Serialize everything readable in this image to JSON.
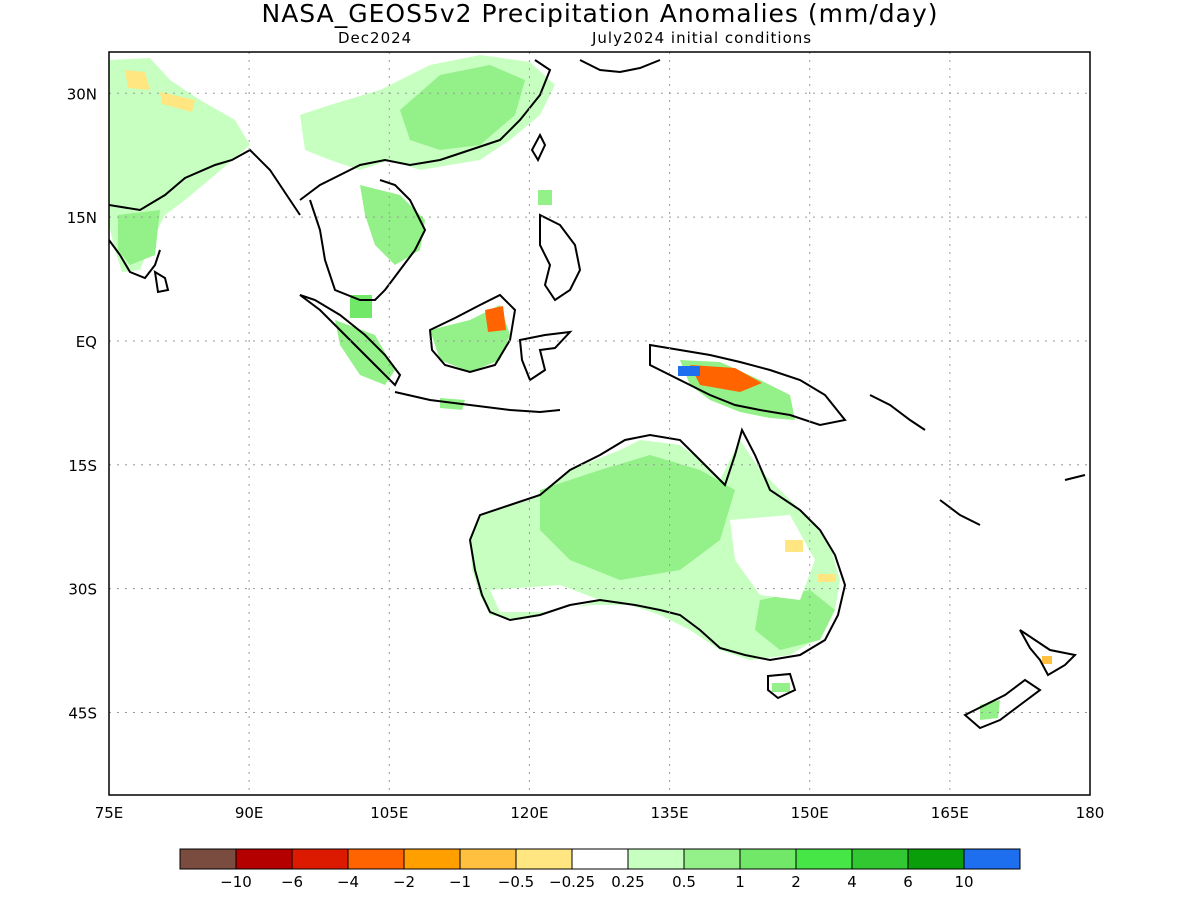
{
  "title": "NASA_GEOS5v2 Precipitation Anomalies (mm/day)",
  "subtitle_left": "Dec2024",
  "subtitle_right": "July2024 initial conditions",
  "map": {
    "lon_range": [
      75,
      180
    ],
    "lat_range": [
      -55,
      35
    ],
    "grid": true,
    "lon_ticks": [
      {
        "value": 75,
        "label": "75E"
      },
      {
        "value": 90,
        "label": "90E"
      },
      {
        "value": 105,
        "label": "105E"
      },
      {
        "value": 120,
        "label": "120E"
      },
      {
        "value": 135,
        "label": "135E"
      },
      {
        "value": 150,
        "label": "150E"
      },
      {
        "value": 165,
        "label": "165E"
      },
      {
        "value": 180,
        "label": "180"
      }
    ],
    "lat_ticks": [
      {
        "value": 30,
        "label": "30N"
      },
      {
        "value": 15,
        "label": "15N"
      },
      {
        "value": 0,
        "label": "EQ"
      },
      {
        "value": -15,
        "label": "15S"
      },
      {
        "value": -30,
        "label": "30S"
      },
      {
        "value": -45,
        "label": "45S"
      }
    ]
  },
  "colorbar": {
    "colors": [
      "#7a4c3f",
      "#b50000",
      "#dc1a00",
      "#ff6400",
      "#ffa000",
      "#ffc040",
      "#ffe680",
      "#ffffff",
      "#c6ffc0",
      "#94f088",
      "#72e868",
      "#46e646",
      "#32c832",
      "#0a9e0a",
      "#1e6ef0"
    ],
    "labels": [
      "−10",
      "−6",
      "−4",
      "−2",
      "−1",
      "−0.5",
      "−0.25",
      "0.25",
      "0.5",
      "1",
      "2",
      "4",
      "6",
      "10"
    ]
  }
}
